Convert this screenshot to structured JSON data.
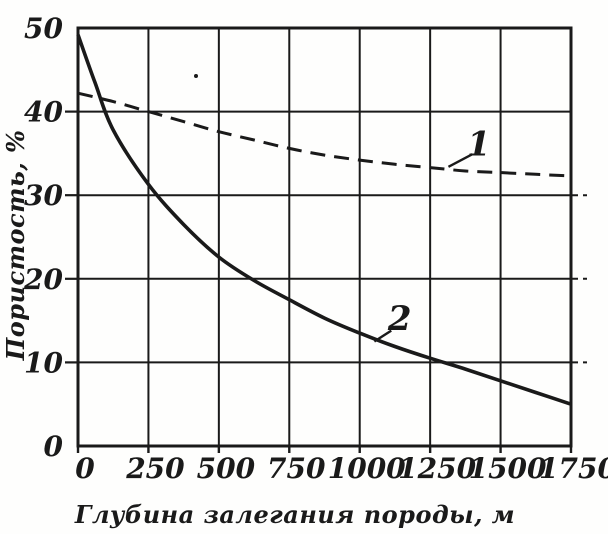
{
  "colors": {
    "ink": "#1a1a1a",
    "paper": "#fefefd"
  },
  "chart_data": {
    "type": "line",
    "title": "",
    "xlabel": "Глубина залегания породы, м",
    "ylabel": "Пористость, %",
    "xlim": [
      0,
      1750
    ],
    "ylim": [
      0,
      50
    ],
    "xticks": [
      0,
      250,
      500,
      750,
      1000,
      1250,
      1500,
      1750
    ],
    "yticks": [
      0,
      10,
      20,
      30,
      40,
      50
    ],
    "grid": true,
    "legend": "none",
    "series": [
      {
        "name": "1",
        "style": "dashed",
        "x": [
          0,
          125,
          250,
          375,
          500,
          625,
          750,
          875,
          1000,
          1125,
          1250,
          1375,
          1500,
          1625,
          1750
        ],
        "y": [
          42.2,
          41.2,
          40.0,
          38.8,
          37.6,
          36.6,
          35.6,
          34.8,
          34.2,
          33.7,
          33.3,
          32.9,
          32.7,
          32.5,
          32.3
        ]
      },
      {
        "name": "2",
        "style": "solid",
        "x": [
          0,
          60,
          125,
          250,
          375,
          500,
          625,
          750,
          875,
          1000,
          1125,
          1250,
          1375,
          1500,
          1625,
          1750
        ],
        "y": [
          49.2,
          43.5,
          37.8,
          31.3,
          26.5,
          22.6,
          19.8,
          17.5,
          15.3,
          13.5,
          11.9,
          10.5,
          9.2,
          7.8,
          6.4,
          5.0
        ]
      }
    ],
    "annotations": [
      {
        "text": "1",
        "x": 1423,
        "y": 36.2,
        "leader": [
          1400,
          34.9,
          1315,
          33.4
        ]
      },
      {
        "text": "2",
        "x": 1142,
        "y": 15.3,
        "leader": [
          1112,
          13.8,
          1052,
          12.5
        ]
      }
    ]
  }
}
